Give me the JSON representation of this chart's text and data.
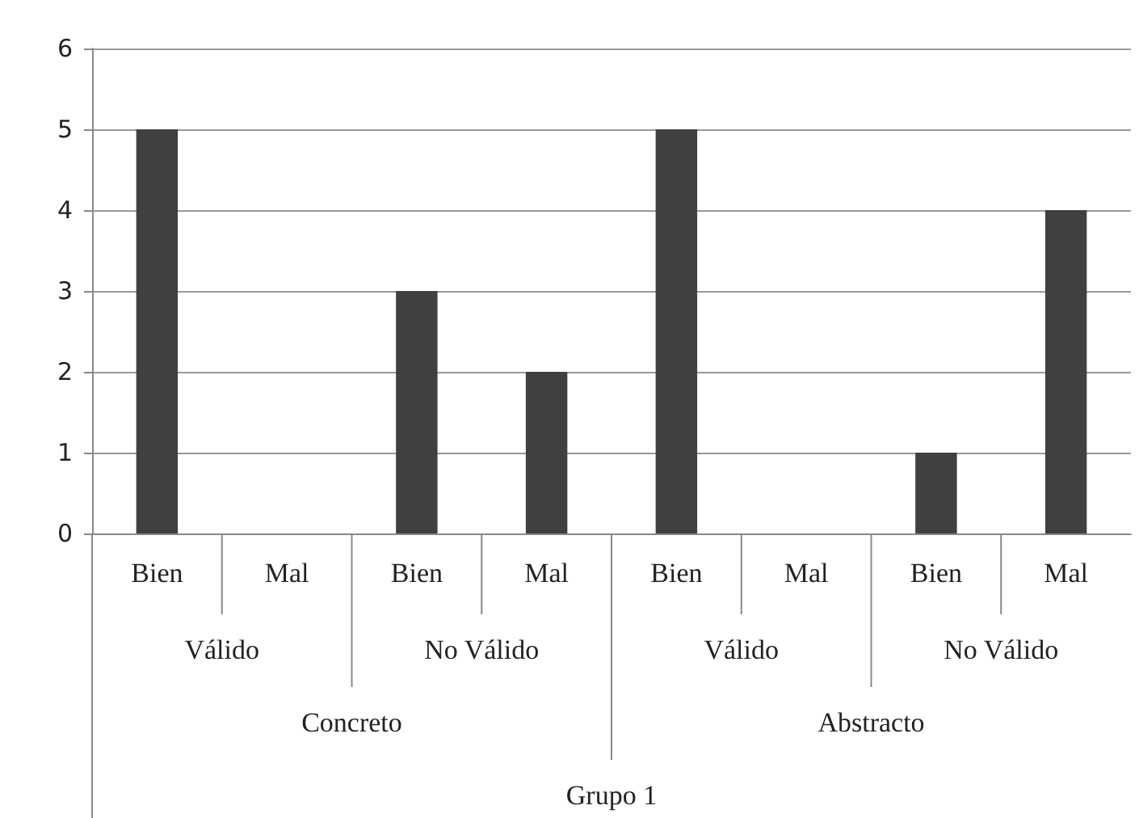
{
  "chart_data": {
    "type": "bar",
    "categories": [
      "Bien",
      "Mal",
      "Bien",
      "Mal",
      "Bien",
      "Mal",
      "Bien",
      "Mal"
    ],
    "values": [
      5,
      0,
      3,
      2,
      5,
      0,
      1,
      4
    ],
    "color": "#404040",
    "annotations": [
      "Válido",
      "No Válido",
      "Válido",
      "No Válido",
      "Concreto",
      "Abstracto",
      "Grupo 1"
    ],
    "ylim": [
      0,
      6
    ],
    "yticks": [
      0,
      1,
      2,
      3,
      4,
      5,
      6
    ],
    "grid": "y"
  }
}
